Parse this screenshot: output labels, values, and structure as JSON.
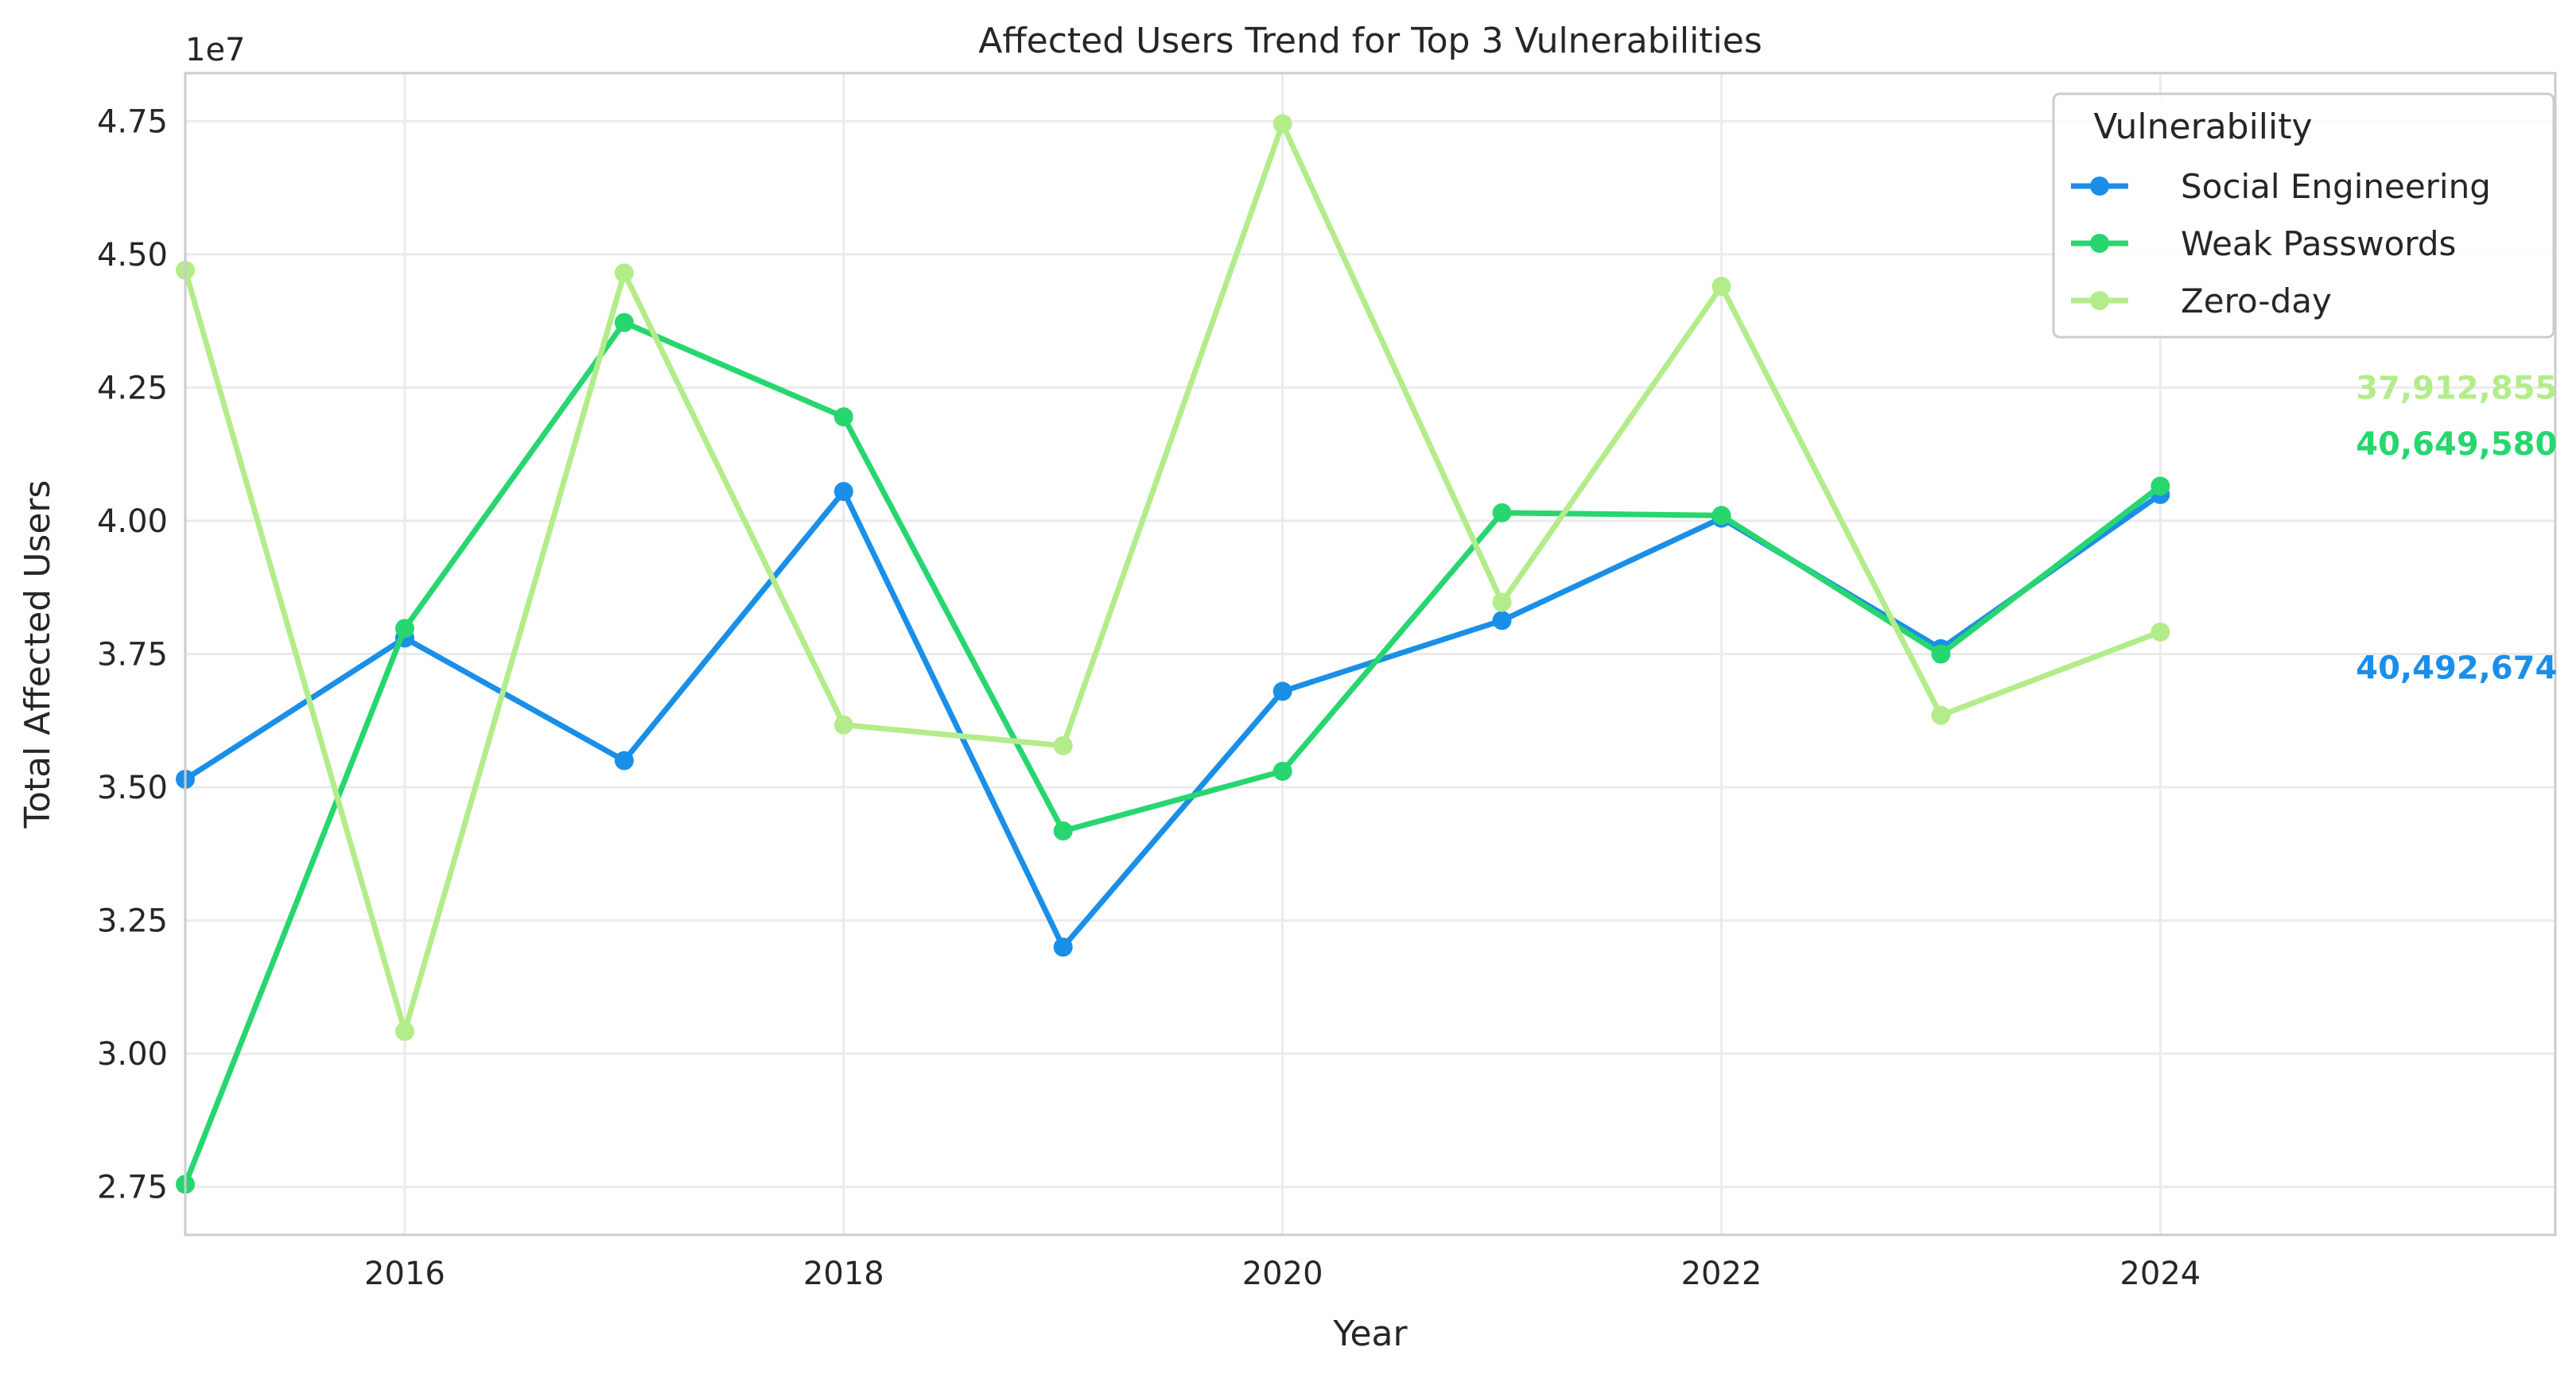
{
  "chart_data": {
    "type": "line",
    "title": "Affected Users Trend for Top 3 Vulnerabilities",
    "xlabel": "Year",
    "ylabel": "Total Affected Users",
    "y_offset_label": "1e7",
    "y_scale": 10000000,
    "xlim": [
      2015,
      2025.8
    ],
    "ylim": [
      26600000,
      48400000
    ],
    "xticks": [
      2016,
      2018,
      2020,
      2022,
      2024
    ],
    "xtick_labels": [
      "2016",
      "2018",
      "2020",
      "2022",
      "2024"
    ],
    "yticks": [
      27500000,
      30000000,
      32500000,
      35000000,
      37500000,
      40000000,
      42500000,
      45000000,
      47500000
    ],
    "ytick_labels": [
      "2.75",
      "3.00",
      "3.25",
      "3.50",
      "3.75",
      "4.00",
      "4.25",
      "4.50",
      "4.75"
    ],
    "grid": true,
    "legend": {
      "title": "Vulnerability",
      "placement": "top-right"
    },
    "x": [
      2015,
      2016,
      2017,
      2018,
      2019,
      2020,
      2021,
      2022,
      2023,
      2024
    ],
    "series": [
      {
        "name": "Social Engineering",
        "color": "#1a8fe8",
        "values": [
          35150000,
          37800000,
          35500000,
          40550000,
          32000000,
          36800000,
          38130000,
          40050000,
          37600000,
          40492674
        ]
      },
      {
        "name": "Weak Passwords",
        "color": "#27d66f",
        "values": [
          27550000,
          37980000,
          43720000,
          41950000,
          34180000,
          35300000,
          40150000,
          40100000,
          37500000,
          40649580
        ]
      },
      {
        "name": "Zero-day",
        "color": "#b3ec8a",
        "values": [
          44700000,
          30420000,
          44650000,
          36170000,
          35780000,
          47450000,
          38470000,
          44400000,
          36350000,
          37912855
        ]
      }
    ],
    "annotations": [
      {
        "series": "Zero-day",
        "text": "37,912,855",
        "color": "#b3ec8a",
        "x": 2025.35,
        "y": 42500000
      },
      {
        "series": "Weak Passwords",
        "text": "40,649,580",
        "color": "#27d66f",
        "x": 2025.35,
        "y": 41450000
      },
      {
        "series": "Social Engineering",
        "text": "40,492,674",
        "color": "#1a8fe8",
        "x": 2025.35,
        "y": 37250000
      }
    ]
  }
}
